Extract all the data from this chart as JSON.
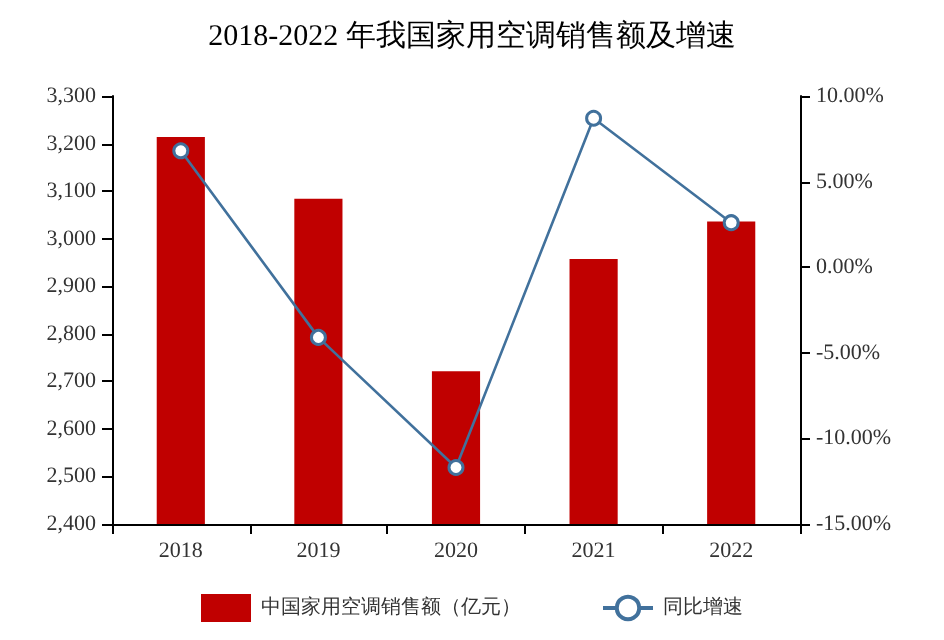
{
  "chart_data": {
    "type": "bar",
    "title": "2018-2022 年我国家用空调销售额及增速",
    "categories": [
      "2018",
      "2019",
      "2020",
      "2021",
      "2022"
    ],
    "series": [
      {
        "name": "中国家用空调销售额（亿元）",
        "color": "#c00000",
        "values": [
          3214,
          3084,
          2721,
          2957,
          3036
        ]
      },
      {
        "name": "同比增速",
        "type": "line",
        "axis": "y2",
        "color": "#41719c",
        "marker": "circle",
        "values": [
          6.8,
          -4.1,
          -11.7,
          8.7,
          2.6
        ]
      }
    ],
    "ylim": [
      2400,
      3300
    ],
    "yticks": [
      {
        "value": 2400,
        "label": "2,400"
      },
      {
        "value": 2500,
        "label": "2,500"
      },
      {
        "value": 2600,
        "label": "2,600"
      },
      {
        "value": 2700,
        "label": "2,700"
      },
      {
        "value": 2800,
        "label": "2,800"
      },
      {
        "value": 2900,
        "label": "2,900"
      },
      {
        "value": 3000,
        "label": "3,000"
      },
      {
        "value": 3100,
        "label": "3,100"
      },
      {
        "value": 3200,
        "label": "3,200"
      },
      {
        "value": 3300,
        "label": "3,300"
      }
    ],
    "y2lim": [
      -15,
      10
    ],
    "y2ticks": [
      {
        "value": -15,
        "label": "-15.00%"
      },
      {
        "value": -10,
        "label": "-10.00%"
      },
      {
        "value": -5,
        "label": "-5.00%"
      },
      {
        "value": 0,
        "label": "0.00%"
      },
      {
        "value": 5,
        "label": "5.00%"
      },
      {
        "value": 10,
        "label": "10.00%"
      }
    ],
    "grid": false,
    "legend": "bottom"
  }
}
